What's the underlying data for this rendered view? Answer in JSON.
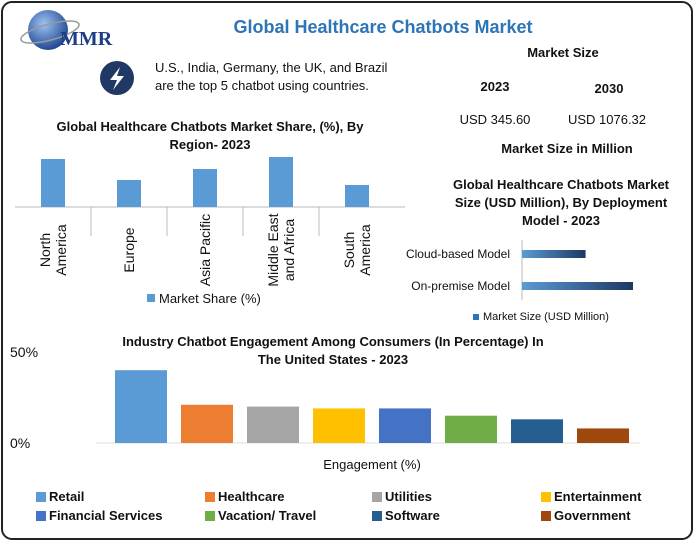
{
  "header": {
    "logo": "MMR",
    "title": "Global Healthcare Chatbots Market"
  },
  "highlight": "U.S., India, Germany, the UK, and Brazil are the top 5 chatbot using countries.",
  "market_size": {
    "heading": "Market Size",
    "years": [
      "2023",
      "2030"
    ],
    "values": [
      "USD 345.60",
      "USD 1076.32"
    ],
    "note": "Market Size in Million"
  },
  "chart_data": [
    {
      "type": "bar",
      "title": "Global Healthcare Chatbots Market Share, (%), By Region- 2023",
      "categories": [
        "North America",
        "Europe",
        "Asia Pacific",
        "Middle East and Africa",
        "South America"
      ],
      "series": [
        {
          "name": "Market Share (%)",
          "color": "#5b9bd5",
          "values": [
            48,
            27,
            38,
            50,
            22
          ]
        }
      ]
    },
    {
      "type": "barh",
      "title": "Global Healthcare Chatbots Market Size (USD Million), By Deployment Model - 2023",
      "categories": [
        "Cloud-based Model",
        "On-premise Model"
      ],
      "series": [
        {
          "name": "Market Size (USD Million)",
          "color": "#2e75b6",
          "values": [
            126,
            220
          ]
        }
      ]
    },
    {
      "type": "colbar",
      "title": "Industry Chatbot Engagement Among Consumers (In Percentage) In The United States -  2023",
      "xlabel": "Engagement (%)",
      "categories": [
        "Retail",
        "Healthcare",
        "Utilities",
        "Entertainment",
        "Financial Services",
        "Vacation/ Travel",
        "Software",
        "Government"
      ],
      "values": [
        40,
        21,
        20,
        19,
        19,
        15,
        13,
        8
      ],
      "colors": [
        "#5b9bd5",
        "#ed7d31",
        "#a5a5a5",
        "#ffc000",
        "#4472c4",
        "#70ad47",
        "#255e91",
        "#9e480e"
      ],
      "ylim": [
        0,
        50
      ],
      "yticks": [
        {
          "value": 0,
          "label": "0%"
        },
        {
          "value": 50,
          "label": "50%"
        }
      ]
    }
  ]
}
